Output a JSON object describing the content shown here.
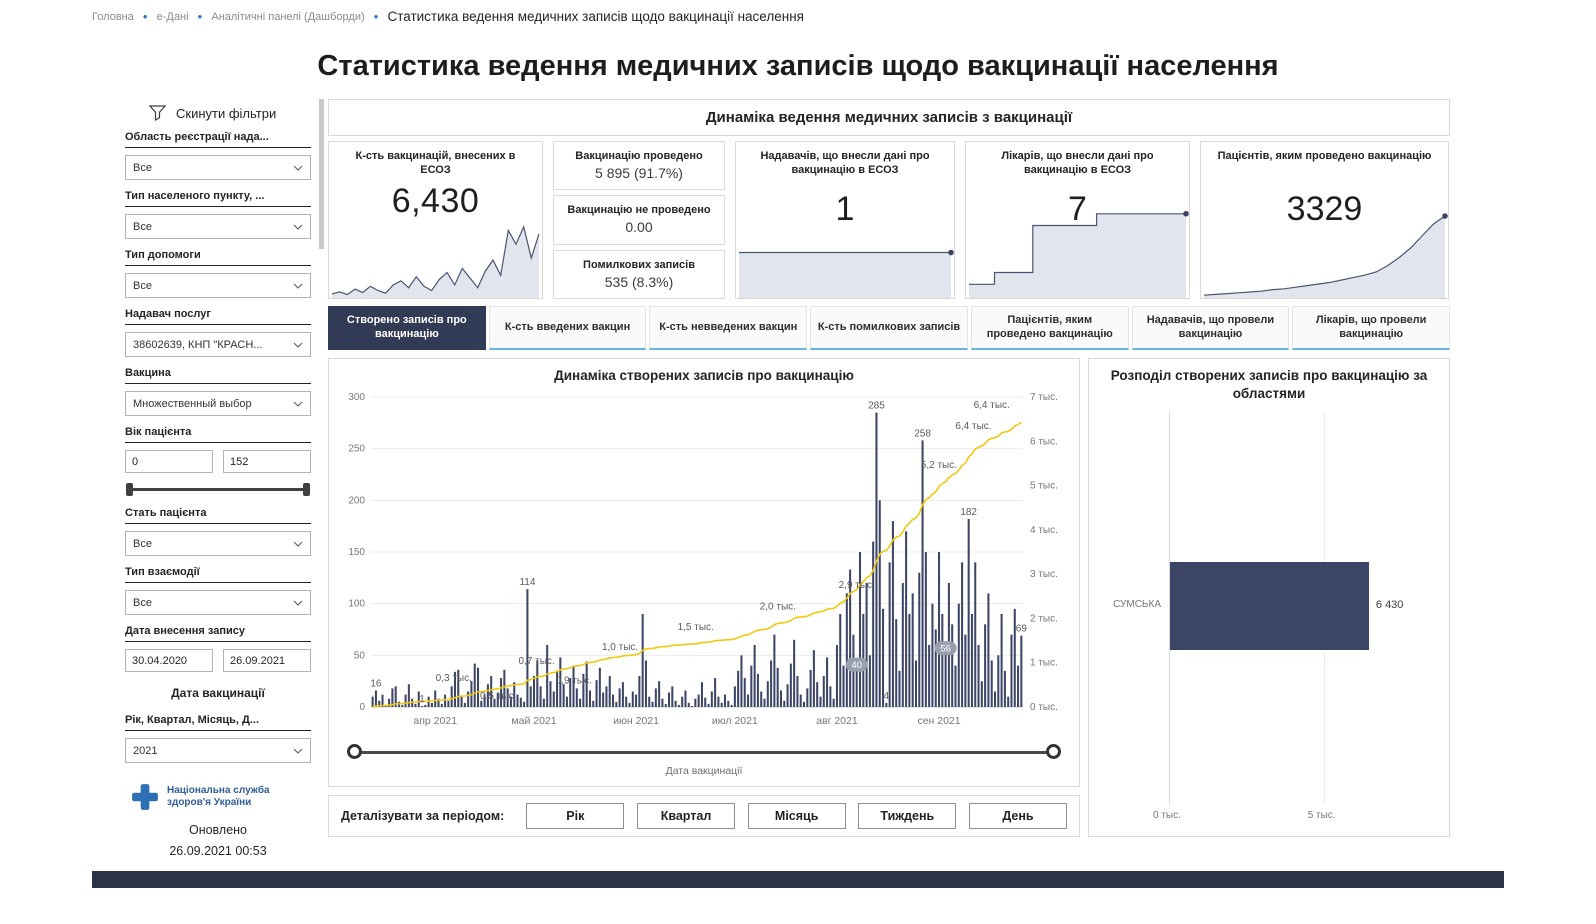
{
  "breadcrumb": {
    "items": [
      "Головна",
      "е-Дані",
      "Аналітичні панелі (Дашборди)"
    ],
    "current": "Статистика ведення медичних записів щодо вакцинації населення"
  },
  "page_title": "Статистика ведення медичних записів щодо вакцинації населення",
  "filters": {
    "reset_label": "Скинути фільтри",
    "items": [
      {
        "label": "Область реєстрації нада...",
        "value": "Все"
      },
      {
        "label": "Тип населеного пункту, ...",
        "value": "Все"
      },
      {
        "label": "Тип допомоги",
        "value": "Все"
      },
      {
        "label": "Надавач послуг",
        "value": "38602639, КНП \"КРАСН..."
      },
      {
        "label": "Вакцина",
        "value": "Множественный выбор"
      },
      {
        "label": "Вік пацієнта",
        "min": "0",
        "max": "152"
      },
      {
        "label": "Стать пацієнта",
        "value": "Все"
      },
      {
        "label": "Тип взаємодії",
        "value": "Все"
      },
      {
        "label": "Дата внесення запису",
        "from": "30.04.2020",
        "to": "26.09.2021"
      },
      {
        "label": "Дата вакцинації"
      },
      {
        "label": "Рік, Квартал, Місяць, Д...",
        "value": "2021"
      }
    ],
    "logo_text": "Національна служба здоров'я України",
    "updated_label": "Оновлено",
    "updated_value": "26.09.2021 00:53"
  },
  "panel_title": "Динаміка ведення медичних записів з вакцинації",
  "kpi": {
    "cards": [
      {
        "title": "К-сть вакцинацій, внесених в ЕСОЗ",
        "value": "6,430",
        "spark": [
          3,
          6,
          2,
          10,
          5,
          14,
          8,
          4,
          16,
          22,
          12,
          28,
          14,
          8,
          24,
          34,
          16,
          40,
          26,
          12,
          36,
          52,
          30,
          95,
          75,
          100,
          55,
          90
        ],
        "spark_max": 110
      },
      {
        "title": "Вакцинацію проведено",
        "value": "5 895 (91.7%)"
      },
      {
        "title": "Вакцинацію не проведено",
        "value": "0.00"
      },
      {
        "title": "Помилкових записів",
        "value": "535 (8.3%)"
      },
      {
        "title": "Надавачів, що внесли дані про вакцинацію в ЕСОЗ",
        "value": "1",
        "spark": [
          1,
          1,
          1,
          1,
          1,
          1,
          1,
          1,
          1,
          1,
          1,
          1
        ],
        "spark_max": 1.15,
        "spark_dot": true
      },
      {
        "title": "Лікарів, що внесли дані про вакцинацію в ЕСОЗ",
        "value": "7",
        "spark": [
          1,
          1,
          2,
          2,
          2,
          6,
          6,
          6,
          6,
          6,
          7,
          7,
          7,
          7,
          7,
          7,
          7,
          7
        ],
        "spark_max": 8,
        "spark_step": true,
        "spark_dot": true
      },
      {
        "title": "Пацієнтів, яким проведено вакцинацію",
        "value": "3329",
        "spark": [
          1,
          2,
          3,
          4,
          5,
          6,
          8,
          9,
          11,
          13,
          15,
          17,
          20,
          23,
          26,
          30,
          38,
          48,
          60,
          75,
          90,
          100
        ],
        "spark_max": 105,
        "spark_dot": true
      }
    ]
  },
  "tabs": [
    {
      "label": "Створено записів про вакцинацію",
      "active": true
    },
    {
      "label": "К-сть введених вакцин"
    },
    {
      "label": "К-сть невведених вакцин"
    },
    {
      "label": "К-сть помилкових записів"
    },
    {
      "label": "Пацієнтів, яким проведено вакцинацію"
    },
    {
      "label": "Надавачів, що провели вакцинацію"
    },
    {
      "label": "Лікарів, що провели вакцинацію"
    }
  ],
  "period": {
    "label": "Деталізувати за періодом:",
    "buttons": [
      "Рік",
      "Квартал",
      "Місяць",
      "Тиждень",
      "День"
    ]
  },
  "chart_data": [
    {
      "type": "bar+line",
      "title": "Динаміка створених записів про вакцинацію",
      "x_axis_label": "Дата вакцинації",
      "total": 6430,
      "y_left_max": 300,
      "y_left_ticks": [
        0,
        50,
        100,
        150,
        200,
        250,
        300
      ],
      "y_right_max": 7000,
      "y_right_ticks": [
        "0 тыс.",
        "1 тыс.",
        "2 тыс.",
        "3 тыс.",
        "4 тыс.",
        "5 тыс.",
        "6 тыс.",
        "7 тыс."
      ],
      "bar_color": "#3d4566",
      "line_color": "#f2c80f",
      "x_ticks": [
        {
          "i": 19,
          "label": "апр 2021"
        },
        {
          "i": 49,
          "label": "май 2021"
        },
        {
          "i": 80,
          "label": "июн 2021"
        },
        {
          "i": 110,
          "label": "июл 2021"
        },
        {
          "i": 141,
          "label": "авг 2021"
        },
        {
          "i": 172,
          "label": "сен 2021"
        }
      ],
      "bars": [
        10,
        16,
        6,
        12,
        2,
        8,
        18,
        20,
        5,
        2,
        12,
        22,
        8,
        3,
        15,
        1,
        2,
        10,
        4,
        16,
        8,
        3,
        12,
        6,
        20,
        34,
        36,
        10,
        4,
        15,
        25,
        42,
        38,
        6,
        12,
        22,
        30,
        8,
        14,
        28,
        36,
        18,
        10,
        24,
        12,
        9,
        5,
        114,
        20,
        30,
        45,
        20,
        8,
        60,
        25,
        15,
        35,
        48,
        22,
        10,
        28,
        40,
        18,
        8,
        32,
        44,
        16,
        6,
        26,
        38,
        14,
        20,
        30,
        12,
        5,
        18,
        24,
        10,
        4,
        15,
        12,
        30,
        90,
        45,
        10,
        5,
        18,
        25,
        8,
        3,
        14,
        20,
        6,
        2,
        10,
        16,
        4,
        1,
        8,
        12,
        24,
        9,
        3,
        15,
        28,
        10,
        4,
        12,
        6,
        2,
        20,
        35,
        50,
        28,
        12,
        40,
        60,
        32,
        15,
        8,
        25,
        45,
        70,
        38,
        16,
        6,
        22,
        42,
        65,
        30,
        12,
        5,
        18,
        36,
        55,
        24,
        10,
        30,
        48,
        20,
        8,
        60,
        90,
        40,
        110,
        133,
        70,
        40,
        150,
        90,
        120,
        50,
        160,
        285,
        200,
        95,
        4,
        140,
        180,
        85,
        35,
        120,
        170,
        90,
        110,
        45,
        130,
        258,
        150,
        60,
        100,
        75,
        150,
        90,
        56,
        120,
        80,
        40,
        100,
        140,
        70,
        182,
        90,
        140,
        60,
        25,
        80,
        110,
        45,
        15,
        50,
        90,
        35,
        10,
        70,
        95,
        40,
        69
      ],
      "bar_labels": [
        {
          "i": 1,
          "t": "16"
        },
        {
          "i": 15,
          "t": "1"
        },
        {
          "i": 47,
          "t": "114"
        },
        {
          "i": 153,
          "t": "285"
        },
        {
          "i": 167,
          "t": "258"
        },
        {
          "i": 181,
          "t": "182"
        },
        {
          "i": 156,
          "t": "4"
        },
        {
          "i": 197,
          "t": "69"
        }
      ],
      "pill_labels": [
        {
          "i": 147,
          "t": "40"
        },
        {
          "i": 174,
          "t": "56"
        }
      ],
      "line_labels": [
        {
          "x": 0.127,
          "v": 660,
          "t": "0,3 тыс."
        },
        {
          "x": 0.195,
          "v": 250,
          "t": "0,5 тыс."
        },
        {
          "x": 0.254,
          "v": 1040,
          "t": "0,7 тыс."
        },
        {
          "x": 0.311,
          "v": 600,
          "t": "0,9 тыс."
        },
        {
          "x": 0.382,
          "v": 1350,
          "t": "1,0 тыс."
        },
        {
          "x": 0.498,
          "v": 1810,
          "t": "1,5 тыс."
        },
        {
          "x": 0.624,
          "v": 2270,
          "t": "2,0 тыс."
        },
        {
          "x": 0.745,
          "v": 2750,
          "t": "2,9 тыс."
        },
        {
          "x": 0.871,
          "v": 5470,
          "t": "5,2 тыс."
        },
        {
          "x": 0.924,
          "v": 6350,
          "t": "6,4 тыс."
        },
        {
          "x": 0.952,
          "v": 6820,
          "t": "6,4 тыс."
        }
      ]
    },
    {
      "type": "bar-horizontal",
      "title": "Розподіл створених записів про вакцинацію за областями",
      "categories": [
        "СУМСЬКА"
      ],
      "values": [
        6430
      ],
      "value_labels": [
        "6 430"
      ],
      "x_ticks": [
        "0 тыс.",
        "5 тыс."
      ],
      "x_max": 8340,
      "gridline_value": 5000,
      "bar_color": "#3d4566"
    }
  ]
}
